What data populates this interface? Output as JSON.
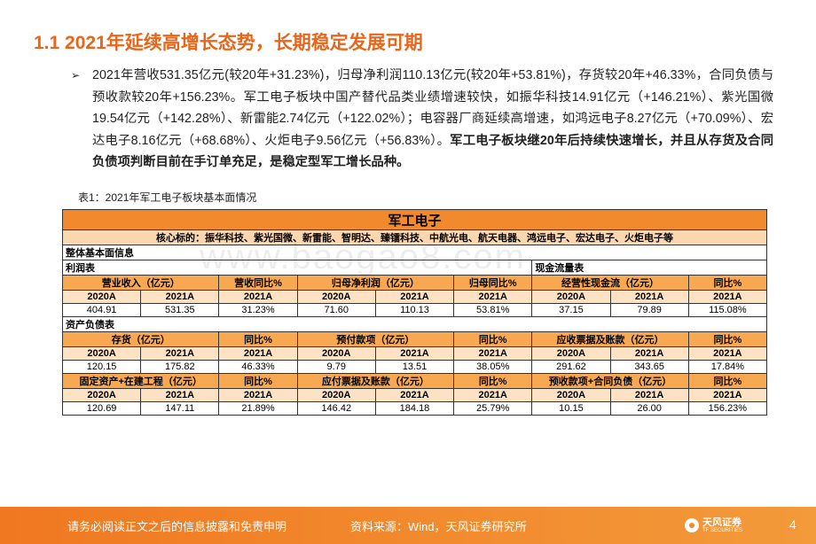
{
  "title": "1.1 2021年延续高增长态势，长期稳定发展可期",
  "paragraph": {
    "normal": "2021年营收531.35亿元(较20年+31.23%)，归母净利润110.13亿元(较20年+53.81%)，存货较20年+46.33%，合同负债与预收款较20年+156.23%。军工电子板块中国产替代品类业绩增速较快，如振华科技14.91亿元（+146.21%）、紫光国微19.54亿元（+142.28%）、新雷能2.74亿元（+122.02%）；电容器厂商延续高增速，如鸿远电子8.27亿元（+70.09%）、宏达电子8.16亿元（+68.68%）、火炬电子9.56亿元（+56.83%）。",
    "bold": "军工电子板块继20年后持续快速增长，并且从存货及合同负债项判断目前在手订单充足，是稳定型军工增长品种。"
  },
  "caption": "表1：2021年军工电子板块基本面情况",
  "watermark": "www.baogao8.com",
  "table": {
    "header": "军工电子",
    "core": "核心标的：振华科技、紫光国微、新雷能、智明达、臻镭科技、中航光电、航天电器、鸿远电子、宏达电子、火炬电子等",
    "overview": "整体基本面信息",
    "profit_label": "利润表",
    "cash_label": "现金流量表",
    "balance_label": "资产负债表",
    "blocks": [
      [
        {
          "name": "营业收入（亿元）",
          "yoy": "营收同比%",
          "years": [
            "2020A",
            "2021A",
            "2021A"
          ],
          "values": [
            "404.91",
            "531.35",
            "31.23%"
          ]
        },
        {
          "name": "归母净利润（亿元）",
          "yoy": "归母同比%",
          "years": [
            "2020A",
            "2021A",
            "2021A"
          ],
          "values": [
            "71.60",
            "110.13",
            "53.81%"
          ]
        },
        {
          "name": "经营性现金流（亿元）",
          "yoy": "同比%",
          "years": [
            "2020A",
            "2021A",
            "2021A"
          ],
          "values": [
            "37.15",
            "79.89",
            "115.08%"
          ]
        }
      ],
      [
        {
          "name": "存货（亿元）",
          "yoy": "同比%",
          "years": [
            "2020A",
            "2021A",
            "2021A"
          ],
          "values": [
            "120.15",
            "175.82",
            "46.33%"
          ]
        },
        {
          "name": "预付款项（亿元）",
          "yoy": "同比%",
          "years": [
            "2020A",
            "2021A",
            "2021A"
          ],
          "values": [
            "9.79",
            "13.51",
            "38.05%"
          ]
        },
        {
          "name": "应收票据及账款（亿元）",
          "yoy": "同比%",
          "years": [
            "2020A",
            "2021A",
            "2021A"
          ],
          "values": [
            "291.62",
            "343.65",
            "17.84%"
          ]
        }
      ],
      [
        {
          "name": "固定资产+在建工程（亿元）",
          "yoy": "同比%",
          "years": [
            "2020A",
            "2021A",
            "2021A"
          ],
          "values": [
            "120.69",
            "147.11",
            "21.89%"
          ]
        },
        {
          "name": "应付票据及账款（亿元）",
          "yoy": "同比%",
          "years": [
            "2020A",
            "2021A",
            "2021A"
          ],
          "values": [
            "146.42",
            "184.18",
            "25.79%"
          ]
        },
        {
          "name": "预收款项+合同负债（亿元）",
          "yoy": "同比%",
          "years": [
            "2020A",
            "2021A",
            "2021A"
          ],
          "values": [
            "10.15",
            "26.00",
            "156.23%"
          ]
        }
      ]
    ]
  },
  "footer": {
    "disclaimer": "请务必阅读正文之后的信息披露和免责申明",
    "source": "资料来源：Wind，天风证券研究所",
    "logo": "天风证券",
    "logo_en": "TF SECURITIES",
    "page": "4"
  }
}
